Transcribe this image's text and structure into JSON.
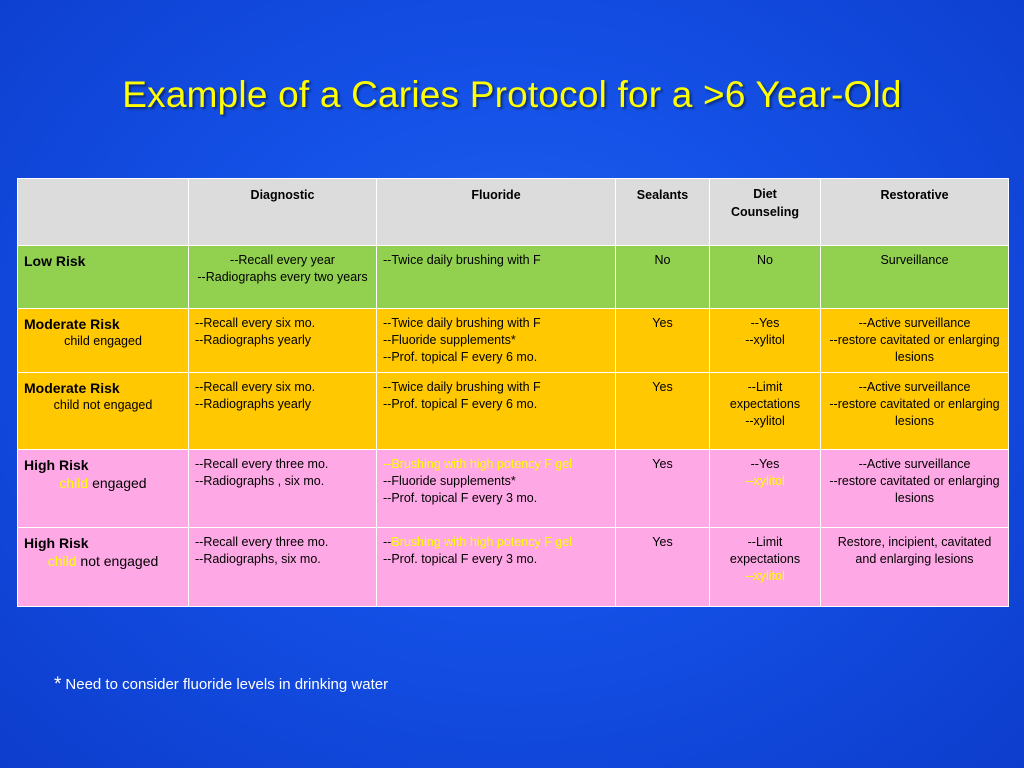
{
  "title": "Example of a Caries Protocol for a >6 Year-Old",
  "headers": {
    "diagnostic": "Diagnostic",
    "fluoride": "Fluoride",
    "sealants": "Sealants",
    "diet_line1": "Diet",
    "diet_line2": "Counseling",
    "restorative": "Restorative"
  },
  "rows": [
    {
      "risk": "Low Risk",
      "diagnostic": [
        "--Recall every year",
        "--Radiographs every two years"
      ],
      "fluoride": [
        "--Twice daily brushing with F"
      ],
      "sealants": "No",
      "diet": [
        "No"
      ],
      "restorative": [
        "Surveillance"
      ]
    },
    {
      "risk": "Moderate Risk",
      "sub": "child engaged",
      "diagnostic": [
        "--Recall every six mo.",
        "--Radiographs yearly"
      ],
      "fluoride": [
        "--Twice daily brushing with F",
        "--Fluoride supplements*",
        "--Prof. topical F every 6 mo."
      ],
      "sealants": "Yes",
      "diet": [
        "--Yes",
        "--xylitol"
      ],
      "restorative": [
        "--Active surveillance",
        "--restore cavitated or enlarging lesions"
      ]
    },
    {
      "risk": "Moderate Risk",
      "sub": "child not engaged",
      "diagnostic": [
        "--Recall every six mo.",
        "--Radiographs yearly"
      ],
      "fluoride": [
        "--Twice daily brushing with F",
        "--Prof. topical F every 6 mo."
      ],
      "sealants": "Yes",
      "diet": [
        "--Limit expectations",
        "--xylitol"
      ],
      "restorative": [
        "--Active surveillance",
        "--restore cavitated or enlarging lesions"
      ]
    },
    {
      "risk": "High Risk",
      "sub_highlight": "child",
      "sub_rest": " engaged",
      "diagnostic": [
        "--Recall every three mo.",
        "--Radiographs ,  six mo."
      ],
      "fluoride_highlight": "--Brushing with high potency F  gel",
      "fluoride": [
        "--Fluoride supplements*",
        "--Prof. topical F every 3 mo."
      ],
      "sealants": "Yes",
      "diet": [
        "--Yes"
      ],
      "diet_highlight": "--xylitol",
      "restorative": [
        "--Active surveillance",
        "--restore cavitated or enlarging lesions"
      ]
    },
    {
      "risk": "High Risk",
      "sub_highlight": "child",
      "sub_rest": " not engaged",
      "diagnostic": [
        "--Recall every three mo.",
        "--Radiographs,  six mo."
      ],
      "fluoride_prefix": "--",
      "fluoride_highlight": "Brushing with high potency F gel",
      "fluoride": [
        "--Prof. topical F every 3 mo."
      ],
      "sealants": "Yes",
      "diet": [
        "--Limit expectations"
      ],
      "diet_highlight": "--xylitol",
      "restorative": [
        "Restore, incipient, cavitated and enlarging lesions"
      ]
    }
  ],
  "footnote": {
    "star": "*",
    "text": "Need to consider  fluoride levels in drinking water"
  },
  "colors": {
    "background": "#1450e6",
    "title": "#ffff00",
    "header_row": "#dcdcdc",
    "low_risk": "#92d050",
    "moderate_risk": "#ffc800",
    "high_risk": "#ffa8e6",
    "highlight_text": "#ffff00"
  }
}
